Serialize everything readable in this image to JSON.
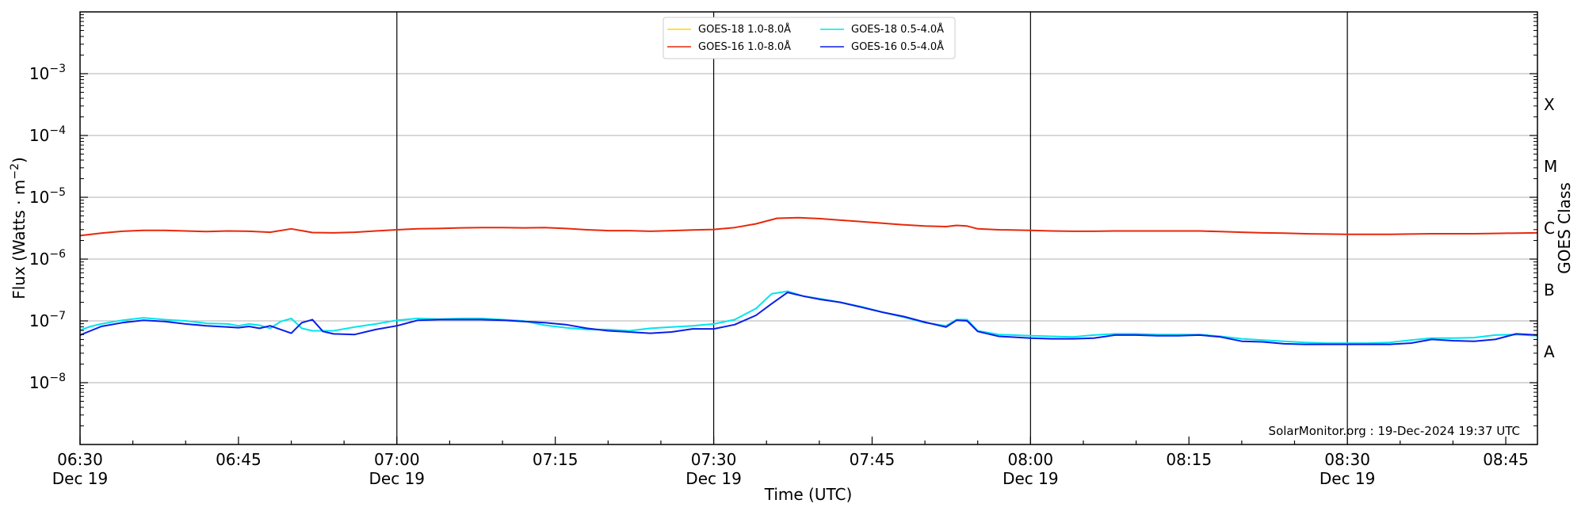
{
  "chart_data": {
    "type": "line",
    "xlabel": "Time (UTC)",
    "ylabel": "Flux (Watts · m",
    "ylabel_superscript": "−2",
    "ylabel_close": ")",
    "right_label": "GOES Class",
    "watermark": "SolarMonitor.org : 19-Dec-2024 19:37 UTC",
    "x_range_min": [
      390,
      528
    ],
    "y_range_log10": [
      -9.0,
      -2.0
    ],
    "log_scale": true,
    "grid": "horizontal",
    "legend_placement": "top-center",
    "x_ticks": [
      {
        "m": 390,
        "label": "06:30",
        "date": "Dec 19"
      },
      {
        "m": 405,
        "label": "06:45",
        "date": ""
      },
      {
        "m": 420,
        "label": "07:00",
        "date": "Dec 19"
      },
      {
        "m": 435,
        "label": "07:15",
        "date": ""
      },
      {
        "m": 450,
        "label": "07:30",
        "date": "Dec 19"
      },
      {
        "m": 465,
        "label": "07:45",
        "date": ""
      },
      {
        "m": 480,
        "label": "08:00",
        "date": "Dec 19"
      },
      {
        "m": 495,
        "label": "08:15",
        "date": ""
      },
      {
        "m": 510,
        "label": "08:30",
        "date": "Dec 19"
      },
      {
        "m": 525,
        "label": "08:45",
        "date": ""
      }
    ],
    "day_lines_min": [
      420,
      450,
      480,
      510
    ],
    "y_ticks": [
      {
        "exp": -3,
        "base": "10",
        "sup": "−3"
      },
      {
        "exp": -4,
        "base": "10",
        "sup": "−4"
      },
      {
        "exp": -5,
        "base": "10",
        "sup": "−5"
      },
      {
        "exp": -6,
        "base": "10",
        "sup": "−6"
      },
      {
        "exp": -7,
        "base": "10",
        "sup": "−7"
      },
      {
        "exp": -8,
        "base": "10",
        "sup": "−8"
      }
    ],
    "goes_classes": [
      {
        "label": "X",
        "exp": -3.5
      },
      {
        "label": "M",
        "exp": -4.5
      },
      {
        "label": "C",
        "exp": -5.5
      },
      {
        "label": "B",
        "exp": -6.5
      },
      {
        "label": "A",
        "exp": -7.5
      }
    ],
    "series": [
      {
        "name": "GOES-18 1.0-8.0Å",
        "color": "#ffd700",
        "points": []
      },
      {
        "name": "GOES-16 1.0-8.0Å",
        "color": "#e8280a",
        "points": [
          [
            390,
            -5.62
          ],
          [
            392,
            -5.58
          ],
          [
            394,
            -5.55
          ],
          [
            396,
            -5.535
          ],
          [
            398,
            -5.535
          ],
          [
            400,
            -5.545
          ],
          [
            402,
            -5.555
          ],
          [
            404,
            -5.545
          ],
          [
            406,
            -5.55
          ],
          [
            408,
            -5.565
          ],
          [
            410,
            -5.51
          ],
          [
            412,
            -5.57
          ],
          [
            414,
            -5.575
          ],
          [
            416,
            -5.565
          ],
          [
            418,
            -5.545
          ],
          [
            420,
            -5.525
          ],
          [
            422,
            -5.51
          ],
          [
            424,
            -5.505
          ],
          [
            426,
            -5.495
          ],
          [
            428,
            -5.49
          ],
          [
            430,
            -5.49
          ],
          [
            432,
            -5.495
          ],
          [
            434,
            -5.49
          ],
          [
            436,
            -5.505
          ],
          [
            438,
            -5.525
          ],
          [
            440,
            -5.54
          ],
          [
            442,
            -5.54
          ],
          [
            444,
            -5.55
          ],
          [
            446,
            -5.54
          ],
          [
            448,
            -5.53
          ],
          [
            450,
            -5.52
          ],
          [
            452,
            -5.49
          ],
          [
            454,
            -5.43
          ],
          [
            456,
            -5.34
          ],
          [
            458,
            -5.33
          ],
          [
            460,
            -5.345
          ],
          [
            462,
            -5.37
          ],
          [
            464,
            -5.395
          ],
          [
            466,
            -5.42
          ],
          [
            468,
            -5.445
          ],
          [
            470,
            -5.465
          ],
          [
            472,
            -5.475
          ],
          [
            473,
            -5.455
          ],
          [
            474,
            -5.465
          ],
          [
            475,
            -5.51
          ],
          [
            477,
            -5.525
          ],
          [
            480,
            -5.535
          ],
          [
            482,
            -5.545
          ],
          [
            484,
            -5.55
          ],
          [
            486,
            -5.55
          ],
          [
            488,
            -5.545
          ],
          [
            490,
            -5.545
          ],
          [
            492,
            -5.545
          ],
          [
            494,
            -5.545
          ],
          [
            496,
            -5.545
          ],
          [
            498,
            -5.555
          ],
          [
            500,
            -5.565
          ],
          [
            502,
            -5.575
          ],
          [
            504,
            -5.58
          ],
          [
            506,
            -5.59
          ],
          [
            508,
            -5.595
          ],
          [
            510,
            -5.6
          ],
          [
            512,
            -5.6
          ],
          [
            514,
            -5.6
          ],
          [
            516,
            -5.595
          ],
          [
            518,
            -5.59
          ],
          [
            520,
            -5.59
          ],
          [
            522,
            -5.59
          ],
          [
            524,
            -5.585
          ],
          [
            526,
            -5.58
          ],
          [
            528,
            -5.575
          ]
        ]
      },
      {
        "name": "GOES-18 0.5-4.0Å",
        "color": "#00e5ee",
        "points": [
          [
            390,
            -7.15
          ],
          [
            391,
            -7.09
          ],
          [
            392,
            -7.05
          ],
          [
            394,
            -6.99
          ],
          [
            396,
            -6.95
          ],
          [
            398,
            -6.98
          ],
          [
            400,
            -7.0
          ],
          [
            402,
            -7.04
          ],
          [
            404,
            -7.05
          ],
          [
            405,
            -7.08
          ],
          [
            406,
            -7.05
          ],
          [
            407,
            -7.07
          ],
          [
            408,
            -7.12
          ],
          [
            409,
            -7.01
          ],
          [
            410,
            -6.96
          ],
          [
            411,
            -7.12
          ],
          [
            412,
            -7.16
          ],
          [
            414,
            -7.16
          ],
          [
            416,
            -7.1
          ],
          [
            418,
            -7.05
          ],
          [
            420,
            -6.99
          ],
          [
            422,
            -6.96
          ],
          [
            424,
            -6.97
          ],
          [
            426,
            -6.96
          ],
          [
            428,
            -6.96
          ],
          [
            430,
            -6.98
          ],
          [
            432,
            -7.0
          ],
          [
            434,
            -7.07
          ],
          [
            436,
            -7.11
          ],
          [
            438,
            -7.14
          ],
          [
            440,
            -7.14
          ],
          [
            442,
            -7.16
          ],
          [
            444,
            -7.12
          ],
          [
            446,
            -7.1
          ],
          [
            448,
            -7.08
          ],
          [
            450,
            -7.05
          ],
          [
            452,
            -6.98
          ],
          [
            454,
            -6.8
          ],
          [
            455.5,
            -6.56
          ],
          [
            457,
            -6.52
          ],
          [
            458.5,
            -6.6
          ],
          [
            460,
            -6.64
          ],
          [
            462,
            -6.7
          ],
          [
            464,
            -6.77
          ],
          [
            466,
            -6.86
          ],
          [
            468,
            -6.94
          ],
          [
            470,
            -7.03
          ],
          [
            472,
            -7.08
          ],
          [
            473,
            -6.98
          ],
          [
            474,
            -6.98
          ],
          [
            475,
            -7.16
          ],
          [
            477,
            -7.22
          ],
          [
            480,
            -7.24
          ],
          [
            482,
            -7.25
          ],
          [
            484,
            -7.26
          ],
          [
            486,
            -7.23
          ],
          [
            488,
            -7.21
          ],
          [
            490,
            -7.21
          ],
          [
            492,
            -7.22
          ],
          [
            494,
            -7.22
          ],
          [
            496,
            -7.22
          ],
          [
            498,
            -7.25
          ],
          [
            500,
            -7.29
          ],
          [
            502,
            -7.31
          ],
          [
            504,
            -7.33
          ],
          [
            506,
            -7.35
          ],
          [
            508,
            -7.36
          ],
          [
            510,
            -7.36
          ],
          [
            512,
            -7.36
          ],
          [
            514,
            -7.35
          ],
          [
            516,
            -7.31
          ],
          [
            518,
            -7.28
          ],
          [
            520,
            -7.28
          ],
          [
            522,
            -7.27
          ],
          [
            524,
            -7.23
          ],
          [
            526,
            -7.22
          ],
          [
            528,
            -7.24
          ]
        ]
      },
      {
        "name": "GOES-16 0.5-4.0Å",
        "color": "#0a1ee8",
        "points": [
          [
            390,
            -7.23
          ],
          [
            391,
            -7.16
          ],
          [
            392,
            -7.09
          ],
          [
            394,
            -7.03
          ],
          [
            396,
            -6.99
          ],
          [
            398,
            -7.01
          ],
          [
            400,
            -7.05
          ],
          [
            402,
            -7.08
          ],
          [
            404,
            -7.1
          ],
          [
            405,
            -7.11
          ],
          [
            406,
            -7.09
          ],
          [
            407,
            -7.12
          ],
          [
            408,
            -7.08
          ],
          [
            409,
            -7.14
          ],
          [
            410,
            -7.2
          ],
          [
            411,
            -7.03
          ],
          [
            412,
            -6.98
          ],
          [
            413,
            -7.17
          ],
          [
            414,
            -7.21
          ],
          [
            416,
            -7.22
          ],
          [
            418,
            -7.14
          ],
          [
            420,
            -7.08
          ],
          [
            422,
            -6.99
          ],
          [
            424,
            -6.98
          ],
          [
            426,
            -6.98
          ],
          [
            428,
            -6.98
          ],
          [
            430,
            -6.99
          ],
          [
            432,
            -7.01
          ],
          [
            434,
            -7.03
          ],
          [
            436,
            -7.06
          ],
          [
            438,
            -7.12
          ],
          [
            440,
            -7.16
          ],
          [
            442,
            -7.18
          ],
          [
            444,
            -7.2
          ],
          [
            446,
            -7.18
          ],
          [
            448,
            -7.13
          ],
          [
            450,
            -7.13
          ],
          [
            452,
            -7.06
          ],
          [
            454,
            -6.91
          ],
          [
            455.5,
            -6.72
          ],
          [
            457,
            -6.54
          ],
          [
            458.5,
            -6.6
          ],
          [
            460,
            -6.65
          ],
          [
            462,
            -6.7
          ],
          [
            464,
            -6.78
          ],
          [
            466,
            -6.86
          ],
          [
            468,
            -6.93
          ],
          [
            470,
            -7.02
          ],
          [
            472,
            -7.1
          ],
          [
            473,
            -6.99
          ],
          [
            474,
            -7.0
          ],
          [
            475,
            -7.17
          ],
          [
            477,
            -7.25
          ],
          [
            480,
            -7.28
          ],
          [
            482,
            -7.29
          ],
          [
            484,
            -7.29
          ],
          [
            486,
            -7.28
          ],
          [
            488,
            -7.23
          ],
          [
            490,
            -7.23
          ],
          [
            492,
            -7.24
          ],
          [
            494,
            -7.24
          ],
          [
            496,
            -7.23
          ],
          [
            498,
            -7.26
          ],
          [
            500,
            -7.33
          ],
          [
            502,
            -7.34
          ],
          [
            504,
            -7.37
          ],
          [
            506,
            -7.38
          ],
          [
            508,
            -7.38
          ],
          [
            510,
            -7.38
          ],
          [
            512,
            -7.38
          ],
          [
            514,
            -7.38
          ],
          [
            516,
            -7.36
          ],
          [
            518,
            -7.3
          ],
          [
            520,
            -7.32
          ],
          [
            522,
            -7.33
          ],
          [
            524,
            -7.3
          ],
          [
            526,
            -7.21
          ],
          [
            528,
            -7.23
          ]
        ]
      }
    ]
  }
}
